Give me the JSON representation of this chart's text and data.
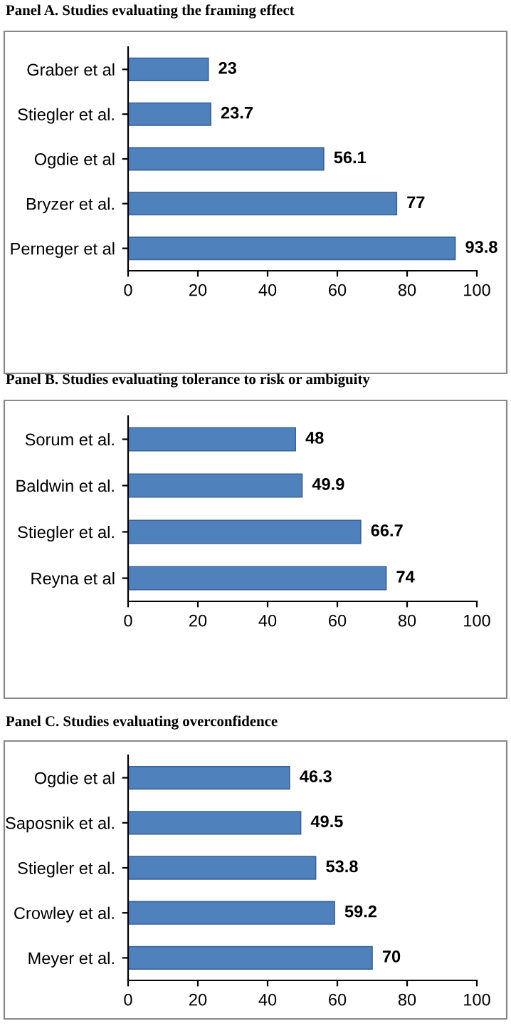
{
  "chart_data": [
    {
      "type": "bar",
      "orientation": "horizontal",
      "title": "Panel A. Studies evaluating the framing effect",
      "categories": [
        "Graber et al",
        "Stiegler et al.",
        "Ogdie et al",
        "Bryzer et al.",
        "Perneger et al"
      ],
      "values": [
        23,
        23.7,
        56.1,
        77,
        93.8
      ],
      "color": "#4f81bd",
      "data_labels": true,
      "xlim": [
        0,
        100
      ],
      "xticks": [
        0,
        20,
        40,
        60,
        80,
        100
      ],
      "grid": false,
      "legend": false
    },
    {
      "type": "bar",
      "orientation": "horizontal",
      "title": "Panel B. Studies evaluating tolerance to risk or ambiguity",
      "categories": [
        "Sorum et al.",
        "Baldwin et al.",
        "Stiegler et al.",
        "Reyna et al"
      ],
      "values": [
        48,
        49.9,
        66.7,
        74
      ],
      "color": "#4f81bd",
      "data_labels": true,
      "xlim": [
        0,
        100
      ],
      "xticks": [
        0,
        20,
        40,
        60,
        80,
        100
      ],
      "grid": false,
      "legend": false
    },
    {
      "type": "bar",
      "orientation": "horizontal",
      "title": "Panel C. Studies evaluating overconfidence",
      "categories": [
        "Ogdie et al",
        "Saposnik et al.",
        "Stiegler et al.",
        "Crowley et al.",
        "Meyer et al."
      ],
      "values": [
        46.3,
        49.5,
        53.8,
        59.2,
        70
      ],
      "color": "#4f81bd",
      "data_labels": true,
      "xlim": [
        0,
        100
      ],
      "xticks": [
        0,
        20,
        40,
        60,
        80,
        100
      ],
      "grid": false,
      "legend": false
    }
  ]
}
